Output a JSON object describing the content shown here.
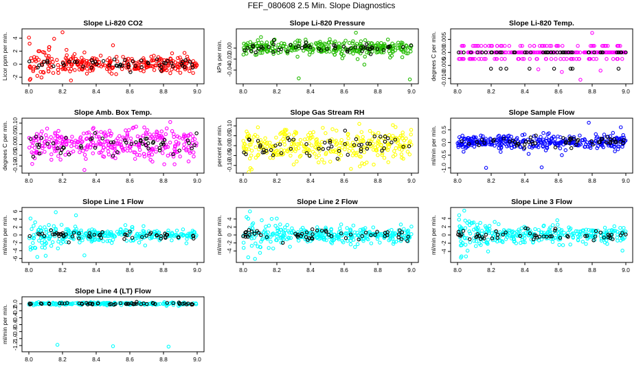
{
  "page": {
    "title": "FEF_080608  2.5 Min. Slope Diagnostics"
  },
  "colors": {
    "overlay": "#000000",
    "red": "#ff0000",
    "green": "#22bb00",
    "magenta": "#ff00ff",
    "yellow": "#ffff00",
    "blue": "#0000ff",
    "cyan": "#00ffff"
  },
  "chart_data": [
    {
      "type": "scatter",
      "title": "Slope Li-820 CO2",
      "ylabel": "Licor ppm per min.",
      "xlim": [
        8.0,
        9.0
      ],
      "ylim": [
        -2.6,
        5.0
      ],
      "xticks": [
        8.0,
        8.2,
        8.4,
        8.6,
        8.8,
        9.0
      ],
      "xtick_labels": [
        "8.0",
        "8.2",
        "8.4",
        "8.6",
        "8.8",
        "9.0"
      ],
      "yticks": [
        -2,
        0,
        2,
        4
      ],
      "ytick_labels": [
        "-2",
        "0",
        "2",
        "4"
      ],
      "color": "#ff0000",
      "outliers": [
        [
          8.2,
          4.9
        ],
        [
          8.15,
          3.9
        ],
        [
          8.12,
          2.6
        ],
        [
          8.25,
          -2.5
        ],
        [
          8.5,
          2.9
        ],
        [
          8.05,
          -1.8
        ],
        [
          8.33,
          1.8
        ]
      ]
    },
    {
      "type": "scatter",
      "title": "Slope Li-820 Pressure",
      "ylabel": "kPa per min.",
      "xlim": [
        8.0,
        9.0
      ],
      "ylim": [
        -0.06,
        0.03
      ],
      "xticks": [
        8.0,
        8.2,
        8.4,
        8.6,
        8.8,
        9.0
      ],
      "xtick_labels": [
        "8.0",
        "8.2",
        "8.4",
        "8.6",
        "8.8",
        "9.0"
      ],
      "yticks": [
        -0.04,
        -0.02,
        0.0
      ],
      "ytick_labels": [
        "-0.04",
        "-0.02",
        "0.00"
      ],
      "color": "#22bb00",
      "outliers": [
        [
          8.33,
          -0.055
        ],
        [
          8.99,
          -0.057
        ],
        [
          8.67,
          0.028
        ],
        [
          8.68,
          -0.02
        ],
        [
          8.72,
          -0.03
        ]
      ]
    },
    {
      "type": "scatter",
      "title": "Slope Li-820 Temp.",
      "ylabel": "degrees C per min.",
      "xlim": [
        8.0,
        9.0
      ],
      "ylim": [
        -0.011,
        0.008
      ],
      "xticks": [
        8.0,
        8.2,
        8.4,
        8.6,
        8.8,
        9.0
      ],
      "xtick_labels": [
        "8.0",
        "8.2",
        "8.4",
        "8.6",
        "8.8",
        "9.0"
      ],
      "yticks": [
        -0.01,
        -0.005,
        0.0,
        0.005
      ],
      "ytick_labels": [
        "-0.010",
        "-0.005",
        "0.000",
        "0.005"
      ],
      "color": "#ff00ff",
      "outliers": [
        [
          8.73,
          -0.0105
        ],
        [
          8.62,
          -0.0075
        ],
        [
          8.8,
          0.0075
        ],
        [
          8.48,
          -0.0065
        ],
        [
          8.85,
          -0.007
        ]
      ]
    },
    {
      "type": "scatter",
      "title": "Slope Amb. Box Temp.",
      "ylabel": "degrees C per min.",
      "xlim": [
        8.0,
        9.0
      ],
      "ylim": [
        -0.12,
        0.11
      ],
      "xticks": [
        8.0,
        8.2,
        8.4,
        8.6,
        8.8,
        9.0
      ],
      "xtick_labels": [
        "8.0",
        "8.2",
        "8.4",
        "8.6",
        "8.8",
        "9.0"
      ],
      "yticks": [
        -0.1,
        -0.05,
        0.0,
        0.05,
        0.1
      ],
      "ytick_labels": [
        "-0.10",
        "-0.05",
        "0.00",
        "0.05",
        "0.10"
      ],
      "color": "#ff00ff",
      "outliers": [
        [
          8.33,
          -0.118
        ],
        [
          8.84,
          0.105
        ],
        [
          8.02,
          -0.09
        ]
      ]
    },
    {
      "type": "scatter",
      "title": "Slope Gas Stream RH",
      "ylabel": "percent per min.",
      "xlim": [
        8.0,
        9.0
      ],
      "ylim": [
        -0.125,
        0.125
      ],
      "xticks": [
        8.0,
        8.2,
        8.4,
        8.6,
        8.8,
        9.0
      ],
      "xtick_labels": [
        "8.0",
        "8.2",
        "8.4",
        "8.6",
        "8.8",
        "9.0"
      ],
      "yticks": [
        -0.1,
        -0.05,
        0.0,
        0.05,
        0.1
      ],
      "ytick_labels": [
        "-0.10",
        "-0.05",
        "0.00",
        "0.05",
        "0.10"
      ],
      "color": "#ffff00",
      "outliers": [
        [
          8.05,
          -0.12
        ],
        [
          8.69,
          0.11
        ],
        [
          8.3,
          -0.095
        ]
      ]
    },
    {
      "type": "scatter",
      "title": "Slope Sample Flow",
      "ylabel": "ml/min per min.",
      "xlim": [
        8.0,
        9.0
      ],
      "ylim": [
        -1.1,
        0.85
      ],
      "xticks": [
        8.0,
        8.2,
        8.4,
        8.6,
        8.8,
        9.0
      ],
      "xtick_labels": [
        "8.0",
        "8.2",
        "8.4",
        "8.6",
        "8.8",
        "9.0"
      ],
      "yticks": [
        -1.0,
        -0.5,
        0.0,
        0.5
      ],
      "ytick_labels": [
        "-1.0",
        "-0.5",
        "0.0",
        "0.5"
      ],
      "color": "#0000ff",
      "outliers": [
        [
          8.78,
          0.78
        ],
        [
          8.97,
          0.6
        ],
        [
          8.17,
          -1.0
        ],
        [
          8.5,
          -0.98
        ],
        [
          8.62,
          -0.5
        ]
      ]
    },
    {
      "type": "scatter",
      "title": "Slope Line 1 Flow",
      "ylabel": "ml/min per min.",
      "xlim": [
        8.0,
        9.0
      ],
      "ylim": [
        -6.3,
        6.3
      ],
      "xticks": [
        8.0,
        8.2,
        8.4,
        8.6,
        8.8,
        9.0
      ],
      "xtick_labels": [
        "8.0",
        "8.2",
        "8.4",
        "8.6",
        "8.8",
        "9.0"
      ],
      "yticks": [
        -6,
        -4,
        -2,
        0,
        2,
        4,
        6
      ],
      "ytick_labels": [
        "-6",
        "-4",
        "-2",
        "0",
        "2",
        "4",
        "6"
      ],
      "color": "#00ffff",
      "outliers": [
        [
          8.16,
          5.8
        ],
        [
          8.05,
          -5.6
        ],
        [
          8.1,
          -5.3
        ],
        [
          8.01,
          4.2
        ],
        [
          8.33,
          -5.2
        ],
        [
          8.28,
          5.0
        ]
      ]
    },
    {
      "type": "scatter",
      "title": "Slope Line 2 Flow",
      "ylabel": "ml/min per min.",
      "xlim": [
        8.0,
        9.0
      ],
      "ylim": [
        -6.2,
        6.2
      ],
      "xticks": [
        8.0,
        8.2,
        8.4,
        8.6,
        8.8,
        9.0
      ],
      "xtick_labels": [
        "8.0",
        "8.2",
        "8.4",
        "8.6",
        "8.8",
        "9.0"
      ],
      "yticks": [
        -4,
        -2,
        0,
        2,
        4
      ],
      "ytick_labels": [
        "-4",
        "-2",
        "0",
        "2",
        "4"
      ],
      "color": "#00ffff",
      "outliers": [
        [
          8.04,
          5.9
        ],
        [
          8.03,
          -5.6
        ],
        [
          8.07,
          -6.0
        ],
        [
          8.1,
          -4.5
        ],
        [
          8.02,
          4.5
        ]
      ]
    },
    {
      "type": "scatter",
      "title": "Slope Line 3 Flow",
      "ylabel": "ml/min per min.",
      "xlim": [
        8.0,
        9.0
      ],
      "ylim": [
        -6.0,
        6.0
      ],
      "xticks": [
        8.0,
        8.2,
        8.4,
        8.6,
        8.8,
        9.0
      ],
      "xtick_labels": [
        "8.0",
        "8.2",
        "8.4",
        "8.6",
        "8.8",
        "9.0"
      ],
      "yticks": [
        -4,
        -2,
        0,
        2,
        4
      ],
      "ytick_labels": [
        "-4",
        "-2",
        "0",
        "2",
        "4"
      ],
      "color": "#00ffff",
      "outliers": [
        [
          8.04,
          5.9
        ],
        [
          8.02,
          -5.5
        ],
        [
          8.05,
          -5.2
        ],
        [
          8.98,
          -3.8
        ],
        [
          8.01,
          4.8
        ]
      ]
    },
    {
      "type": "scatter",
      "title": "Slope Line 4 (LT) Flow",
      "ylabel": "ml/min per min.",
      "xlim": [
        8.0,
        9.0
      ],
      "ylim": [
        -1.3,
        0.12
      ],
      "xticks": [
        8.0,
        8.2,
        8.4,
        8.6,
        8.8,
        9.0
      ],
      "xtick_labels": [
        "8.0",
        "8.2",
        "8.4",
        "8.6",
        "8.8",
        "9.0"
      ],
      "yticks": [
        -1.2,
        -1.0,
        -0.8,
        -0.6,
        -0.4,
        -0.2,
        0.0
      ],
      "ytick_labels": [
        "-1.2",
        "-1.0",
        "-0.8",
        "-0.6",
        "-0.4",
        "-0.2",
        "0.0"
      ],
      "color": "#00ffff",
      "outliers": [
        [
          8.17,
          -1.18
        ],
        [
          8.5,
          -1.22
        ],
        [
          8.83,
          -1.23
        ]
      ]
    }
  ]
}
